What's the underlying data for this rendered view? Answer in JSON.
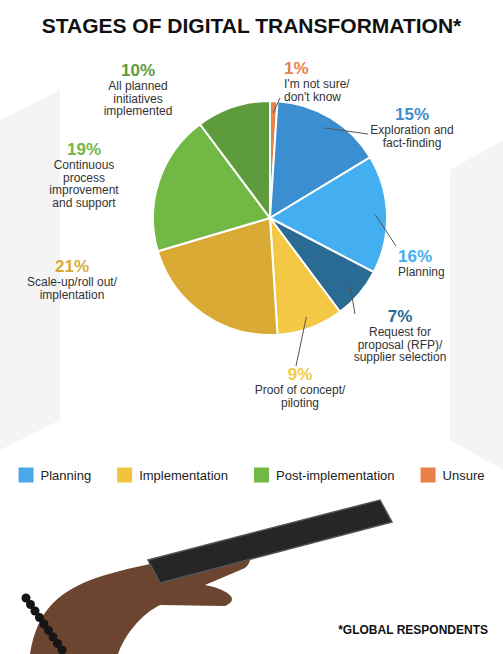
{
  "chart_data": {
    "type": "pie",
    "title": "STAGES OF DIGITAL TRANSFORMATION*",
    "footnote": "*GLOBAL RESPONDENTS",
    "categories": [
      "I'm not sure/\ndon't know",
      "Exploration and\nfact-finding",
      "Planning",
      "Request for\nproposal (RFP)/\nsupplier selection",
      "Proof of concept/\npiloting",
      "Scale-up/roll out/\nimplentation",
      "Continuous\nprocess\nimprovement\nand support",
      "All planned\ninitiatives\nimplemented"
    ],
    "values": [
      1,
      15,
      16,
      7,
      9,
      21,
      19,
      10
    ],
    "value_labels": [
      "1%",
      "15%",
      "16%",
      "7%",
      "9%",
      "21%",
      "19%",
      "10%"
    ],
    "colors": [
      "#e8804a",
      "#3b8fd0",
      "#43aef0",
      "#2a6b94",
      "#f3c845",
      "#d9ab35",
      "#72b845",
      "#5e9b3d"
    ],
    "data_labels": true,
    "legend": "bottom",
    "groups": [
      {
        "name": "Planning",
        "color": "#4aa8e8"
      },
      {
        "name": "Implementation",
        "color": "#f0c43e"
      },
      {
        "name": "Post-implementation",
        "color": "#72b845"
      },
      {
        "name": "Unsure",
        "color": "#e8804a"
      }
    ]
  }
}
